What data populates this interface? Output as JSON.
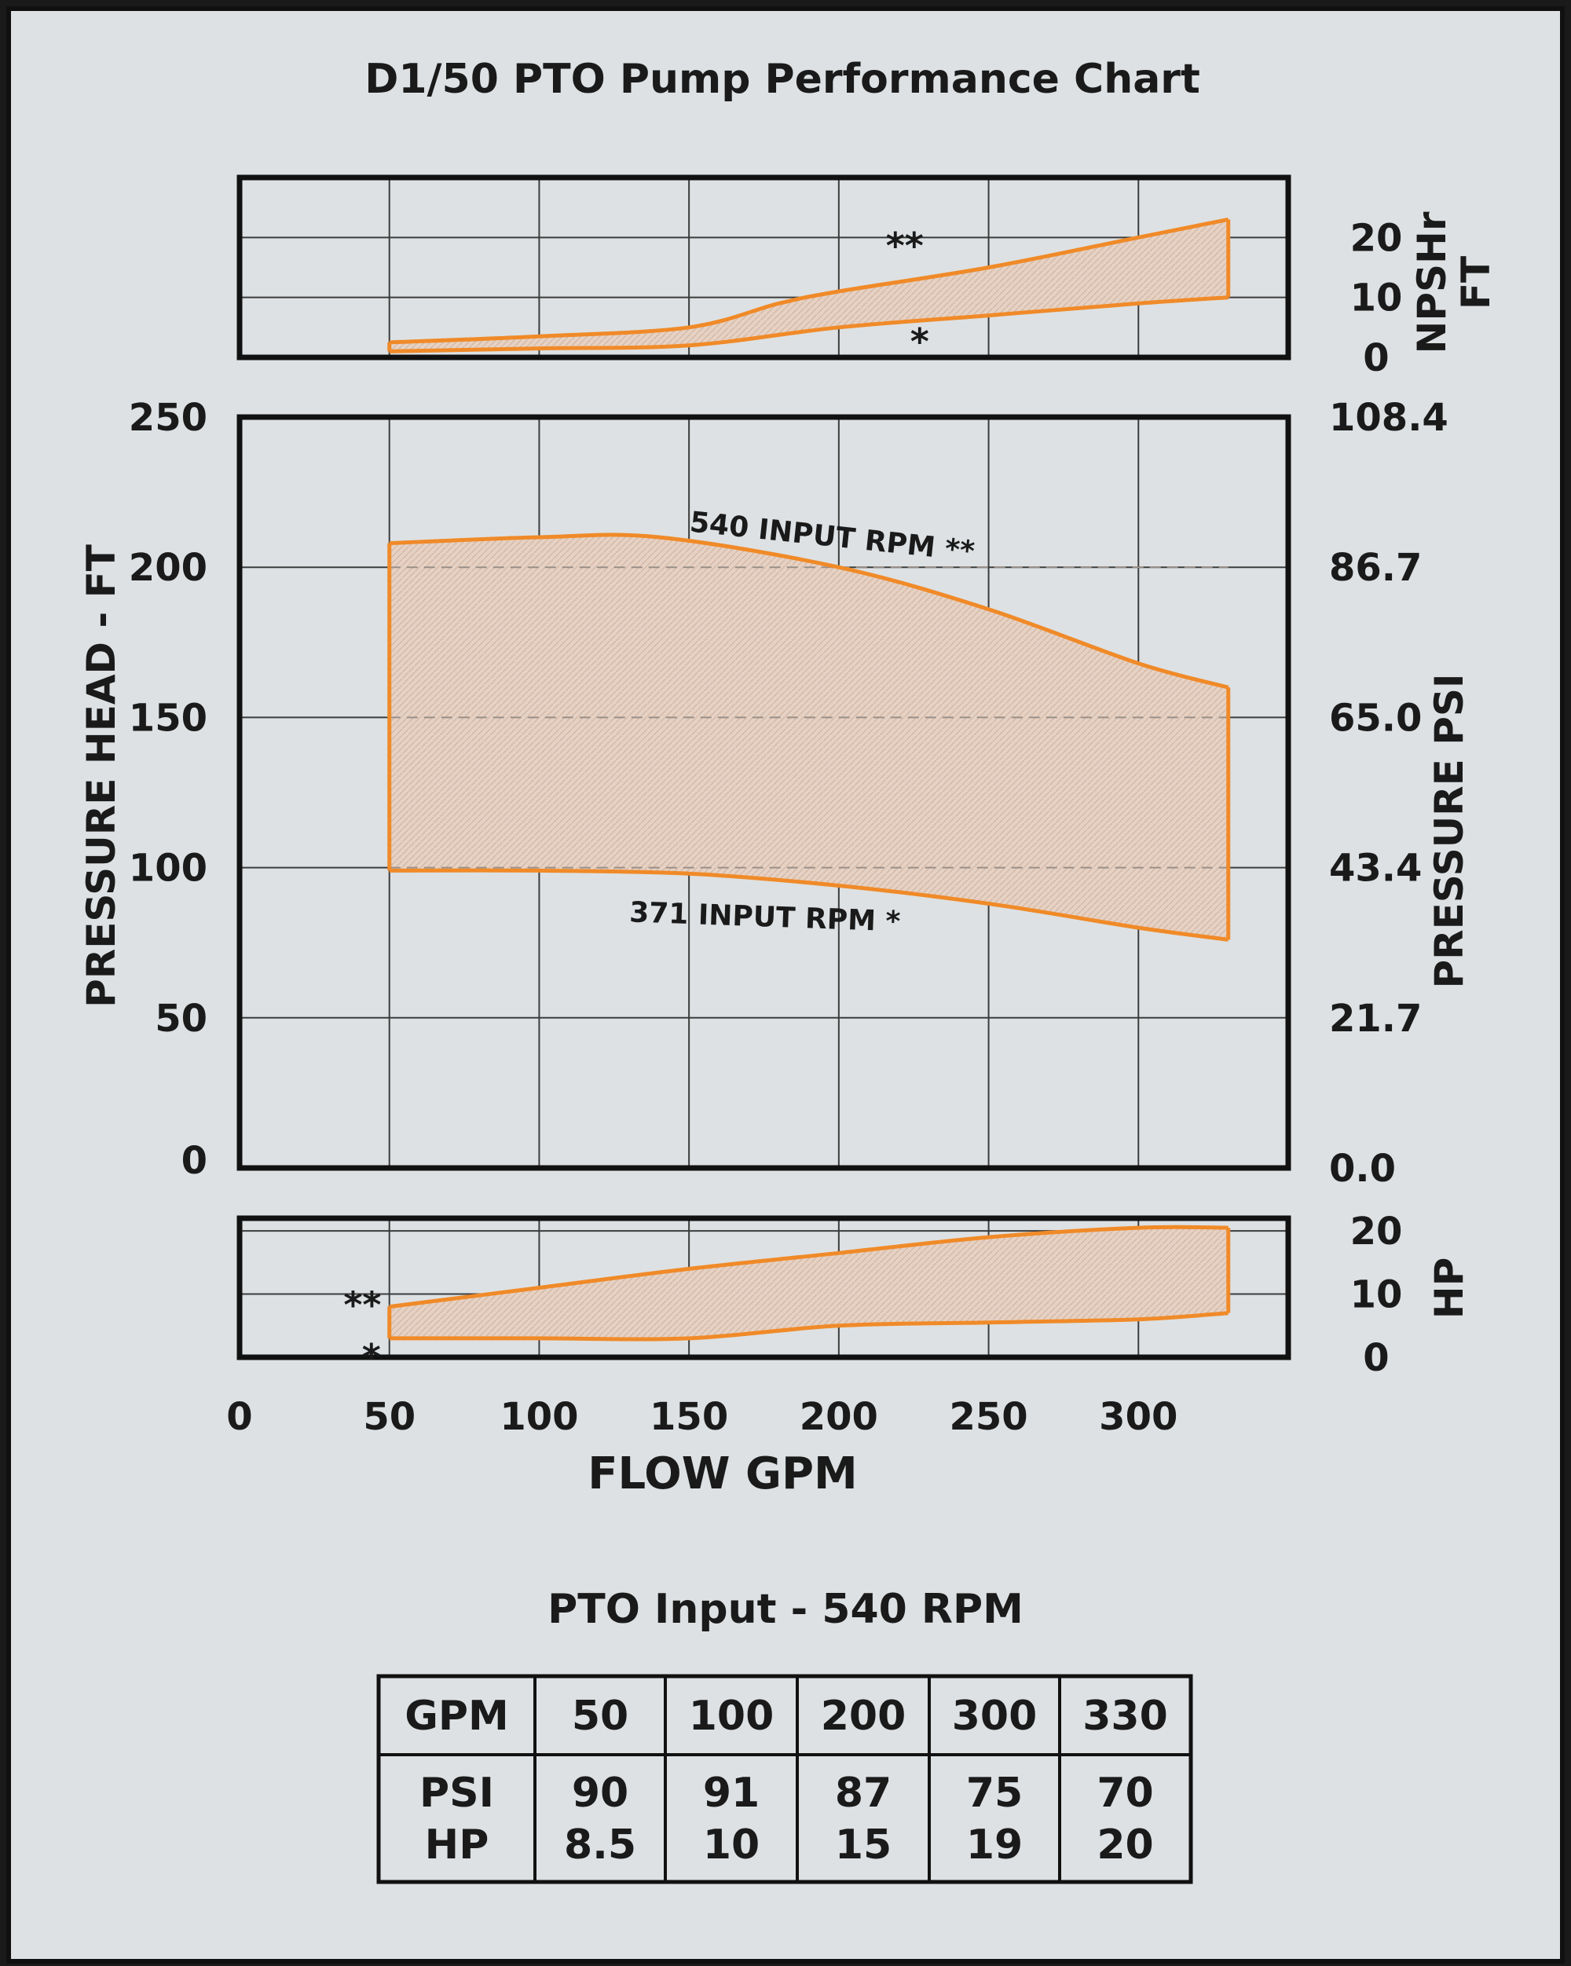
{
  "chart_data": {
    "type": "area",
    "title": "D1/50 PTO Pump Performance Chart",
    "xlabel": "FLOW GPM",
    "xlim": [
      0,
      350
    ],
    "x_ticks": [
      "0",
      "50",
      "100",
      "150",
      "200",
      "250",
      "300"
    ],
    "panels": [
      {
        "id": "npshr",
        "ylabel": "NPSHr FT",
        "ylabel_lines": [
          "NPSHr",
          "FT"
        ],
        "ylim": [
          0,
          30
        ],
        "right_ticks": [
          "0",
          "10",
          "20"
        ],
        "right_tick_values": [
          0,
          10,
          20
        ],
        "series": [
          {
            "name": "**",
            "x": [
              50,
              100,
              150,
              180,
              200,
              250,
              300,
              330
            ],
            "y": [
              2.5,
              3.5,
              5,
              9,
              11,
              15,
              20,
              23
            ]
          },
          {
            "name": "*",
            "x": [
              50,
              100,
              150,
              200,
              250,
              300,
              330
            ],
            "y": [
              1,
              1.5,
              2,
              5,
              7,
              9,
              10
            ]
          }
        ]
      },
      {
        "id": "head",
        "ylabel": "PRESSURE HEAD - FT",
        "ylabel_right": "PRESSURE PSI",
        "ylim": [
          0,
          250
        ],
        "left_ticks": [
          "0",
          "50",
          "100",
          "150",
          "200",
          "250"
        ],
        "left_tick_values": [
          0,
          50,
          100,
          150,
          200,
          250
        ],
        "right_ticks": [
          "0.0",
          "21.7",
          "43.4",
          "65.0",
          "86.7",
          "108.4"
        ],
        "right_tick_values": [
          0,
          50,
          100,
          150,
          200,
          250
        ],
        "series": [
          {
            "name": "540 INPUT RPM **",
            "x": [
              50,
              100,
              140,
              200,
              250,
              300,
              330
            ],
            "y": [
              208,
              210,
              210,
              200,
              186,
              168,
              160
            ]
          },
          {
            "name": "371 INPUT RPM *",
            "x": [
              50,
              100,
              150,
              200,
              250,
              300,
              330
            ],
            "y": [
              99,
              99,
              98,
              94,
              88,
              80,
              76
            ]
          }
        ],
        "annotations": [
          {
            "text": "540 INPUT RPM **",
            "x": 150,
            "y": 212
          },
          {
            "text": "371 INPUT RPM *",
            "x": 130,
            "y": 82
          }
        ]
      },
      {
        "id": "hp",
        "ylabel": "HP",
        "ylim": [
          0,
          22
        ],
        "right_ticks": [
          "0",
          "10",
          "20"
        ],
        "right_tick_values": [
          0,
          10,
          20
        ],
        "series": [
          {
            "name": "**",
            "x": [
              50,
              100,
              150,
              200,
              250,
              300,
              330
            ],
            "y": [
              8,
              11,
              14,
              16.5,
              19,
              20.5,
              20.5
            ]
          },
          {
            "name": "*",
            "x": [
              50,
              100,
              150,
              200,
              250,
              300,
              330
            ],
            "y": [
              3,
              3,
              3,
              5,
              5.5,
              6,
              7
            ]
          }
        ],
        "labels": [
          "**",
          "*"
        ]
      }
    ],
    "colors": {
      "line": "#f08a28",
      "fill": "#e8d3c4",
      "grid": "#3c3c3c"
    },
    "grid": true
  },
  "table": {
    "title": "PTO Input - 540 RPM",
    "header": [
      "GPM",
      "50",
      "100",
      "200",
      "300",
      "330"
    ],
    "rows": [
      [
        "PSI",
        "90",
        "91",
        "87",
        "75",
        "70"
      ],
      [
        "HP",
        "8.5",
        "10",
        "15",
        "19",
        "20"
      ]
    ]
  }
}
